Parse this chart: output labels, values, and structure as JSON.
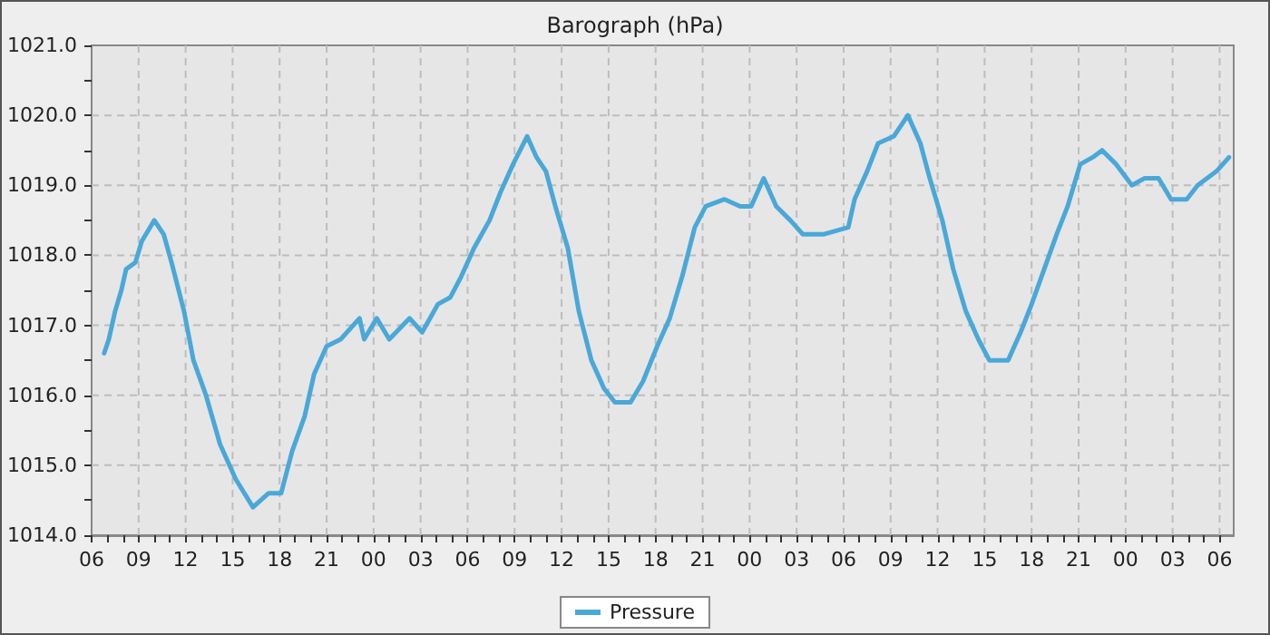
{
  "chart_data": {
    "type": "line",
    "title": "Barograph (hPa)",
    "series": [
      {
        "name": "Pressure",
        "color": "#4aa8d8",
        "x": [
          6.8,
          7.1,
          7.5,
          7.9,
          8.2,
          8.8,
          9.2,
          10.0,
          10.6,
          11.1,
          11.9,
          12.5,
          13.3,
          14.2,
          15.2,
          16.3,
          17.3,
          18.1,
          18.8,
          19.6,
          20.2,
          21.0,
          21.9,
          23.1,
          23.4,
          24.2,
          25.0,
          26.3,
          27.1,
          28.1,
          28.9,
          29.6,
          30.2,
          30.4,
          31.4,
          32.1,
          32.9,
          33.8,
          34.4,
          35.0,
          35.6,
          36.4,
          37.1,
          37.9,
          38.7,
          39.4,
          40.4,
          41.2,
          42.1,
          42.9,
          43.7,
          44.5,
          45.2,
          46.4,
          47.4,
          48.1,
          48.9,
          49.7,
          50.6,
          51.4,
          52.7,
          54.3,
          54.7,
          55.5,
          56.2,
          57.2,
          58.1,
          58.9,
          59.5,
          60.3,
          61.0,
          61.8,
          62.6,
          63.3,
          64.5,
          65.3,
          66.0,
          66.8,
          67.6,
          68.3,
          69.1,
          69.9,
          70.5,
          71.4,
          72.4,
          73.2,
          74.1,
          74.9,
          75.9,
          76.6,
          77.8,
          78.6
        ],
        "values": [
          1016.6,
          1016.8,
          1017.2,
          1017.5,
          1017.8,
          1017.9,
          1018.2,
          1018.5,
          1018.3,
          1017.9,
          1017.2,
          1016.5,
          1016.0,
          1015.3,
          1014.8,
          1014.4,
          1014.6,
          1014.6,
          1015.2,
          1015.7,
          1016.3,
          1016.7,
          1016.8,
          1017.1,
          1016.8,
          1017.1,
          1016.8,
          1017.1,
          1016.9,
          1017.3,
          1017.4,
          1017.7,
          1018.0,
          1018.1,
          1018.5,
          1018.9,
          1019.3,
          1019.7,
          1019.4,
          1019.2,
          1018.7,
          1018.1,
          1017.2,
          1016.5,
          1016.1,
          1015.9,
          1015.9,
          1016.2,
          1016.7,
          1017.1,
          1017.7,
          1018.4,
          1018.7,
          1018.8,
          1018.7,
          1018.7,
          1019.1,
          1018.7,
          1018.5,
          1018.3,
          1018.3,
          1018.4,
          1018.8,
          1019.2,
          1019.6,
          1019.7,
          1020.0,
          1019.6,
          1019.1,
          1018.5,
          1017.8,
          1017.2,
          1016.8,
          1016.5,
          1016.5,
          1016.9,
          1017.3,
          1017.8,
          1018.3,
          1018.7,
          1019.3,
          1019.4,
          1019.5,
          1019.3,
          1019.0,
          1019.1,
          1019.1,
          1018.8,
          1018.8,
          1019.0,
          1019.2,
          1019.4
        ]
      }
    ],
    "xlim": [
      6,
      78.9
    ],
    "xticks": [
      {
        "value": 6,
        "label": "06"
      },
      {
        "value": 7,
        "label": null
      },
      {
        "value": 8,
        "label": null
      },
      {
        "value": 9,
        "label": "09"
      },
      {
        "value": 10,
        "label": null
      },
      {
        "value": 11,
        "label": null
      },
      {
        "value": 12,
        "label": "12"
      },
      {
        "value": 13,
        "label": null
      },
      {
        "value": 14,
        "label": null
      },
      {
        "value": 15,
        "label": "15"
      },
      {
        "value": 16,
        "label": null
      },
      {
        "value": 17,
        "label": null
      },
      {
        "value": 18,
        "label": "18"
      },
      {
        "value": 19,
        "label": null
      },
      {
        "value": 20,
        "label": null
      },
      {
        "value": 21,
        "label": "21"
      },
      {
        "value": 22,
        "label": null
      },
      {
        "value": 23,
        "label": null
      },
      {
        "value": 24,
        "label": "00"
      },
      {
        "value": 25,
        "label": null
      },
      {
        "value": 26,
        "label": null
      },
      {
        "value": 27,
        "label": "03"
      },
      {
        "value": 28,
        "label": null
      },
      {
        "value": 29,
        "label": null
      },
      {
        "value": 30,
        "label": "06"
      },
      {
        "value": 31,
        "label": null
      },
      {
        "value": 32,
        "label": null
      },
      {
        "value": 33,
        "label": "09"
      },
      {
        "value": 34,
        "label": null
      },
      {
        "value": 35,
        "label": null
      },
      {
        "value": 36,
        "label": "12"
      },
      {
        "value": 37,
        "label": null
      },
      {
        "value": 38,
        "label": null
      },
      {
        "value": 39,
        "label": "15"
      },
      {
        "value": 40,
        "label": null
      },
      {
        "value": 41,
        "label": null
      },
      {
        "value": 42,
        "label": "18"
      },
      {
        "value": 43,
        "label": null
      },
      {
        "value": 44,
        "label": null
      },
      {
        "value": 45,
        "label": "21"
      },
      {
        "value": 46,
        "label": null
      },
      {
        "value": 47,
        "label": null
      },
      {
        "value": 48,
        "label": "00"
      },
      {
        "value": 49,
        "label": null
      },
      {
        "value": 50,
        "label": null
      },
      {
        "value": 51,
        "label": "03"
      },
      {
        "value": 52,
        "label": null
      },
      {
        "value": 53,
        "label": null
      },
      {
        "value": 54,
        "label": "06"
      },
      {
        "value": 55,
        "label": null
      },
      {
        "value": 56,
        "label": null
      },
      {
        "value": 57,
        "label": "09"
      },
      {
        "value": 58,
        "label": null
      },
      {
        "value": 59,
        "label": null
      },
      {
        "value": 60,
        "label": "12"
      },
      {
        "value": 61,
        "label": null
      },
      {
        "value": 62,
        "label": null
      },
      {
        "value": 63,
        "label": "15"
      },
      {
        "value": 64,
        "label": null
      },
      {
        "value": 65,
        "label": null
      },
      {
        "value": 66,
        "label": "18"
      },
      {
        "value": 67,
        "label": null
      },
      {
        "value": 68,
        "label": null
      },
      {
        "value": 69,
        "label": "21"
      },
      {
        "value": 70,
        "label": null
      },
      {
        "value": 71,
        "label": null
      },
      {
        "value": 72,
        "label": "00"
      },
      {
        "value": 73,
        "label": null
      },
      {
        "value": 74,
        "label": null
      },
      {
        "value": 75,
        "label": "03"
      },
      {
        "value": 76,
        "label": null
      },
      {
        "value": 77,
        "label": null
      },
      {
        "value": 78,
        "label": "06"
      }
    ],
    "ylim": [
      1014,
      1021
    ],
    "yticks": [
      {
        "value": 1014,
        "label": "1014.0"
      },
      {
        "value": 1014.5,
        "label": null
      },
      {
        "value": 1015,
        "label": "1015.0"
      },
      {
        "value": 1015.5,
        "label": null
      },
      {
        "value": 1016,
        "label": "1016.0"
      },
      {
        "value": 1016.5,
        "label": null
      },
      {
        "value": 1017,
        "label": "1017.0"
      },
      {
        "value": 1017.5,
        "label": null
      },
      {
        "value": 1018,
        "label": "1018.0"
      },
      {
        "value": 1018.5,
        "label": null
      },
      {
        "value": 1019,
        "label": "1019.0"
      },
      {
        "value": 1019.5,
        "label": null
      },
      {
        "value": 1020,
        "label": "1020.0"
      },
      {
        "value": 1020.5,
        "label": null
      },
      {
        "value": 1021,
        "label": "1021.0"
      }
    ],
    "grid": true,
    "legend": "bottom",
    "marker": "none",
    "line_style": "solid"
  }
}
